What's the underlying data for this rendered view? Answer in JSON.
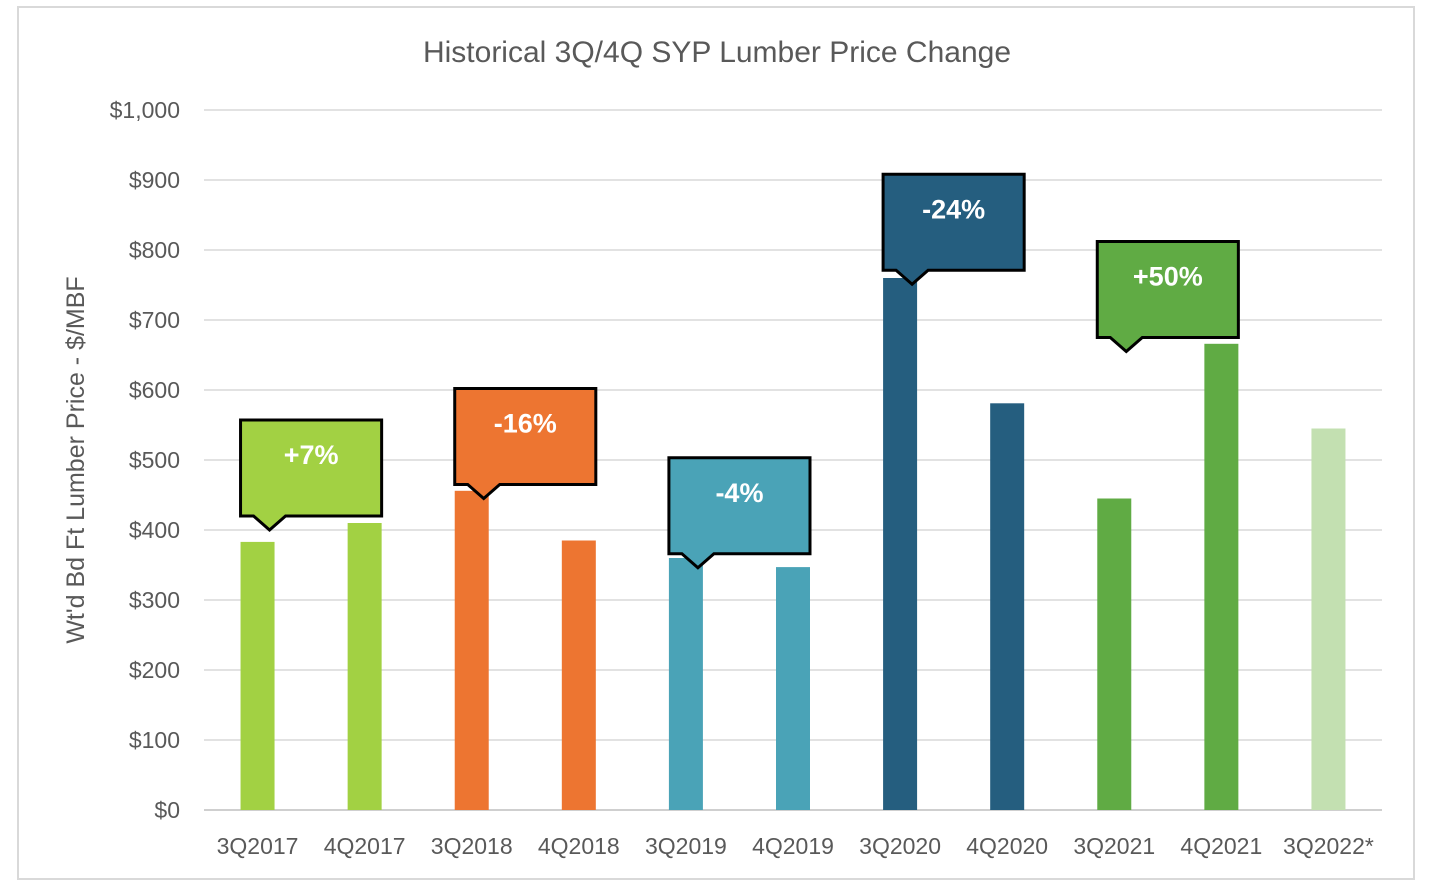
{
  "chart_data": {
    "type": "bar",
    "title": "Historical 3Q/4Q SYP Lumber Price Change",
    "ylabel": "Wt'd Bd Ft Lumber Price - $/MBF",
    "xlabel": "",
    "ylim": [
      0,
      1000
    ],
    "ytick_labels": [
      "$0",
      "$100",
      "$200",
      "$300",
      "$400",
      "$500",
      "$600",
      "$700",
      "$800",
      "$900",
      "$1,000"
    ],
    "grid": true,
    "categories": [
      "3Q2017",
      "4Q2017",
      "3Q2018",
      "4Q2018",
      "3Q2019",
      "4Q2019",
      "3Q2020",
      "4Q2020",
      "3Q2021",
      "4Q2021",
      "3Q2022*"
    ],
    "values": [
      383,
      410,
      456,
      385,
      360,
      347,
      760,
      581,
      445,
      666,
      545
    ],
    "bar_colors": [
      "#a2d143",
      "#a2d143",
      "#ed7531",
      "#ed7531",
      "#4aa3b7",
      "#4aa3b7",
      "#255e7f",
      "#255e7f",
      "#60ab44",
      "#60ab44",
      "#c3e0b1"
    ],
    "annotations": [
      {
        "text": "+7%",
        "pair": [
          0,
          1
        ],
        "color": "#a2d143",
        "anchor_value": 420
      },
      {
        "text": "-16%",
        "pair": [
          2,
          3
        ],
        "color": "#ed7531",
        "anchor_value": 465
      },
      {
        "text": "-4%",
        "pair": [
          4,
          5
        ],
        "color": "#4aa3b7",
        "anchor_value": 366
      },
      {
        "text": "-24%",
        "pair": [
          6,
          7
        ],
        "color": "#255e7f",
        "anchor_value": 771
      },
      {
        "text": "+50%",
        "pair": [
          8,
          9
        ],
        "color": "#60ab44",
        "anchor_value": 675
      }
    ]
  }
}
